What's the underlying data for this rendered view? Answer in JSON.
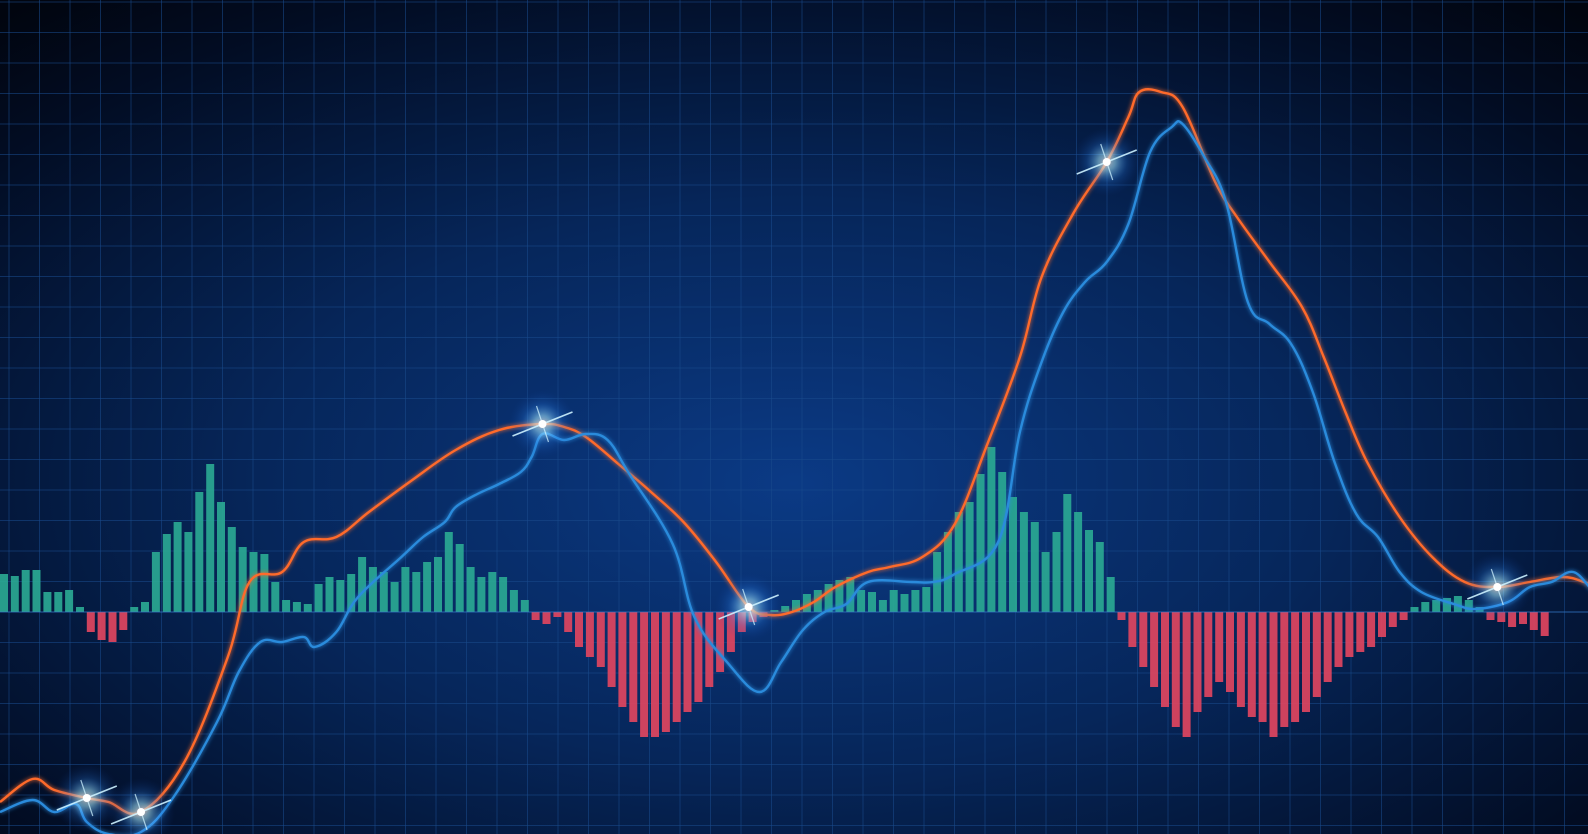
{
  "chart_data": {
    "type": "bar",
    "title": "",
    "xlabel": "",
    "ylabel": "",
    "grid": true,
    "colors": {
      "positive": "#2aa892",
      "negative": "#e0455f",
      "fast_line": "#2a8bdc",
      "slow_line": "#ff6a2b",
      "glow": "#58c8ff",
      "grid": "#1a4a8c",
      "background": "#041a3d"
    },
    "histogram": [
      38,
      36,
      42,
      42,
      20,
      20,
      22,
      5,
      -20,
      -28,
      -30,
      -18,
      5,
      10,
      60,
      78,
      90,
      80,
      120,
      148,
      110,
      85,
      65,
      60,
      58,
      30,
      12,
      10,
      8,
      28,
      35,
      32,
      38,
      55,
      45,
      40,
      30,
      45,
      40,
      50,
      55,
      80,
      68,
      45,
      35,
      40,
      35,
      22,
      12,
      -8,
      -12,
      -5,
      -20,
      -35,
      -45,
      -55,
      -75,
      -95,
      -110,
      -125,
      -125,
      -120,
      -110,
      -100,
      -90,
      -75,
      -60,
      -40,
      -20,
      -10,
      -5,
      2,
      6,
      12,
      18,
      22,
      28,
      32,
      35,
      22,
      20,
      12,
      22,
      18,
      22,
      25,
      60,
      80,
      100,
      110,
      138,
      165,
      140,
      115,
      100,
      90,
      60,
      80,
      118,
      100,
      82,
      70,
      35,
      -8,
      -35,
      -55,
      -75,
      -95,
      -115,
      -125,
      -100,
      -85,
      -70,
      -80,
      -95,
      -105,
      -110,
      -125,
      -115,
      -110,
      -100,
      -85,
      -70,
      -55,
      -45,
      -40,
      -35,
      -25,
      -15,
      -8,
      5,
      10,
      12,
      14,
      16,
      12,
      5,
      -8,
      -10,
      -15,
      -12,
      -18,
      -24
    ],
    "series": [
      {
        "values": [
          [
            0,
            -200
          ],
          [
            3,
            -188
          ],
          [
            5,
            -200
          ],
          [
            7,
            -192
          ],
          [
            8,
            -210
          ],
          [
            10,
            -222
          ],
          [
            13,
            -220
          ],
          [
            16,
            -185
          ],
          [
            20,
            -110
          ],
          [
            22,
            -60
          ],
          [
            24,
            -30
          ],
          [
            26,
            -30
          ],
          [
            28,
            -25
          ],
          [
            29,
            -35
          ],
          [
            31,
            -20
          ],
          [
            33,
            15
          ],
          [
            37,
            55
          ],
          [
            39,
            75
          ],
          [
            41,
            90
          ],
          [
            42,
            105
          ],
          [
            44,
            118
          ],
          [
            46,
            128
          ],
          [
            48,
            140
          ],
          [
            49,
            155
          ],
          [
            50,
            178
          ],
          [
            52,
            172
          ],
          [
            54,
            178
          ],
          [
            56,
            172
          ],
          [
            58,
            138
          ],
          [
            62,
            68
          ],
          [
            64,
            -5
          ],
          [
            67,
            -50
          ],
          [
            70,
            -80
          ],
          [
            72,
            -50
          ],
          [
            74,
            -18
          ],
          [
            76,
            0
          ],
          [
            78,
            8
          ],
          [
            80,
            30
          ],
          [
            84,
            30
          ],
          [
            86,
            30
          ],
          [
            88,
            38
          ],
          [
            92,
            70
          ],
          [
            94,
            180
          ],
          [
            96,
            250
          ],
          [
            98,
            300
          ],
          [
            100,
            330
          ],
          [
            102,
            350
          ],
          [
            104,
            388
          ],
          [
            106,
            460
          ],
          [
            108,
            485
          ],
          [
            109,
            488
          ],
          [
            111,
            455
          ],
          [
            113,
            410
          ],
          [
            115,
            310
          ],
          [
            117,
            288
          ],
          [
            119,
            268
          ],
          [
            121,
            220
          ],
          [
            123,
            150
          ],
          [
            125,
            98
          ],
          [
            127,
            75
          ],
          [
            129,
            40
          ],
          [
            131,
            20
          ],
          [
            134,
            8
          ],
          [
            136,
            3
          ],
          [
            139,
            10
          ],
          [
            141,
            25
          ],
          [
            143,
            30
          ],
          [
            145,
            40
          ],
          [
            147,
            20
          ],
          [
            149,
            12
          ],
          [
            150,
            0
          ]
        ]
      },
      {
        "values": [
          [
            0,
            -190
          ],
          [
            3,
            -167
          ],
          [
            5,
            -178
          ],
          [
            8,
            -186
          ],
          [
            10,
            -190
          ],
          [
            13,
            -200
          ],
          [
            17,
            -150
          ],
          [
            21,
            -45
          ],
          [
            23,
            30
          ],
          [
            26,
            40
          ],
          [
            28,
            70
          ],
          [
            31,
            75
          ],
          [
            34,
            100
          ],
          [
            38,
            132
          ],
          [
            42,
            162
          ],
          [
            46,
            182
          ],
          [
            50,
            188
          ],
          [
            52,
            185
          ],
          [
            54,
            175
          ],
          [
            57,
            148
          ],
          [
            60,
            120
          ],
          [
            63,
            90
          ],
          [
            66,
            50
          ],
          [
            69,
            5
          ],
          [
            71,
            -3
          ],
          [
            73,
            0
          ],
          [
            75,
            10
          ],
          [
            77,
            25
          ],
          [
            80,
            40
          ],
          [
            82,
            45
          ],
          [
            85,
            55
          ],
          [
            88,
            88
          ],
          [
            91,
            168
          ],
          [
            94,
            255
          ],
          [
            96,
            335
          ],
          [
            99,
            400
          ],
          [
            102,
            450
          ],
          [
            104,
            495
          ],
          [
            105,
            520
          ],
          [
            107,
            520
          ],
          [
            109,
            505
          ],
          [
            112,
            430
          ],
          [
            114,
            395
          ],
          [
            117,
            350
          ],
          [
            120,
            305
          ],
          [
            122,
            255
          ],
          [
            124,
            200
          ],
          [
            126,
            150
          ],
          [
            129,
            95
          ],
          [
            132,
            55
          ],
          [
            135,
            30
          ],
          [
            138,
            25
          ],
          [
            141,
            30
          ],
          [
            144,
            35
          ],
          [
            146,
            30
          ],
          [
            148,
            20
          ],
          [
            150,
            5
          ]
        ]
      }
    ]
  }
}
